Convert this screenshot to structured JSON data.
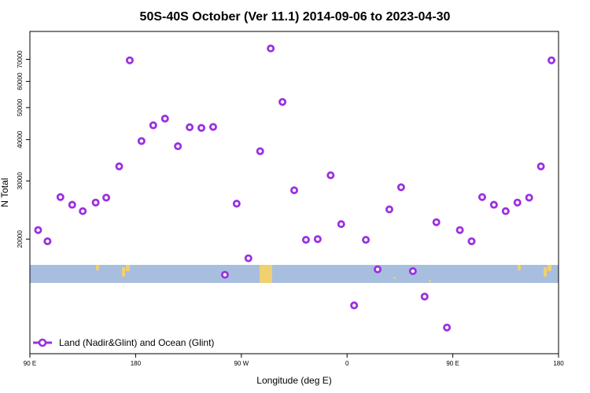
{
  "chart_data": {
    "type": "scatter",
    "title": "50S-40S October (Ver 11.1)   2014-09-06 to 2023-04-30",
    "xlabel": "Longitude (deg E)",
    "ylabel": "N Total",
    "y_scale": "log",
    "ylim": [
      9000,
      85000
    ],
    "x_ticks": [
      {
        "label": "90 E",
        "value": 0
      },
      {
        "label": "180",
        "value": 90
      },
      {
        "label": "90 W",
        "value": 180
      },
      {
        "label": "0",
        "value": 270
      },
      {
        "label": "90 E",
        "value": 360
      },
      {
        "label": "180",
        "value": 450
      }
    ],
    "xlim": [
      0,
      450
    ],
    "y_ticks": [
      20000,
      30000,
      40000,
      50000,
      60000,
      70000
    ],
    "series": [
      {
        "name": "Land (Nadir&Glint) and Ocean (Glint)",
        "color": "#9b30e0",
        "marker": "open-circle",
        "points": [
          [
            7,
            21300
          ],
          [
            15,
            19700
          ],
          [
            26,
            26800
          ],
          [
            36,
            25400
          ],
          [
            45,
            24300
          ],
          [
            56,
            25800
          ],
          [
            65,
            26700
          ],
          [
            76,
            33200
          ],
          [
            85,
            69500
          ],
          [
            95,
            39600
          ],
          [
            105,
            44200
          ],
          [
            115,
            46300
          ],
          [
            126,
            38200
          ],
          [
            136,
            43600
          ],
          [
            146,
            43400
          ],
          [
            156,
            43700
          ],
          [
            166,
            15600
          ],
          [
            176,
            25600
          ],
          [
            186,
            17500
          ],
          [
            196,
            36900
          ],
          [
            205,
            75500
          ],
          [
            215,
            52000
          ],
          [
            225,
            28100
          ],
          [
            235,
            19900
          ],
          [
            245,
            20000
          ],
          [
            256,
            31200
          ],
          [
            265,
            22200
          ],
          [
            276,
            12600
          ],
          [
            286,
            19900
          ],
          [
            296,
            16200
          ],
          [
            306,
            24600
          ],
          [
            316,
            28700
          ],
          [
            326,
            16000
          ],
          [
            336,
            13400
          ],
          [
            346,
            22500
          ],
          [
            355,
            10800
          ],
          [
            366,
            21300
          ],
          [
            376,
            19700
          ],
          [
            385,
            26800
          ],
          [
            395,
            25400
          ],
          [
            405,
            24300
          ],
          [
            415,
            25800
          ],
          [
            425,
            26700
          ],
          [
            435,
            33200
          ],
          [
            444,
            69500
          ]
        ]
      }
    ],
    "legend": {
      "position": "bottom-left",
      "label": "Land (Nadir&Glint) and Ocean (Glint)"
    },
    "map_strip": {
      "ocean_color": "#a8bedf",
      "land_color": "#f0d070"
    },
    "grid": false
  }
}
